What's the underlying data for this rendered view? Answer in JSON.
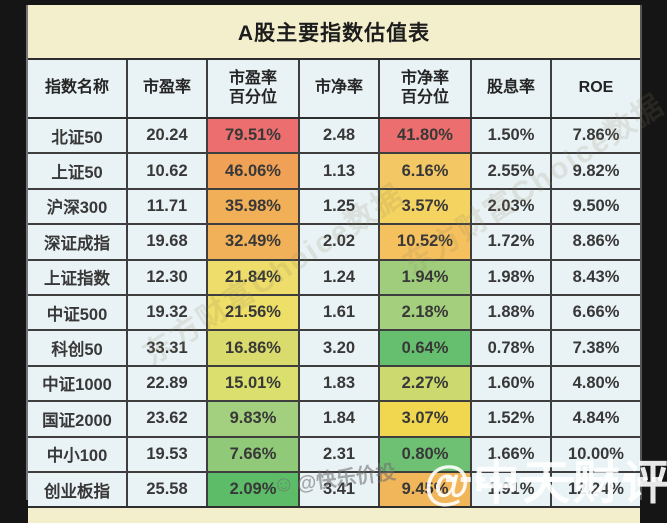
{
  "table": {
    "title": "A股主要指数估值表",
    "headers": [
      {
        "label": "指数名称"
      },
      {
        "label": "市盈率"
      },
      {
        "label": "市盈率",
        "label2": "百分位"
      },
      {
        "label": "市净率"
      },
      {
        "label": "市净率",
        "label2": "百分位"
      },
      {
        "label": "股息率"
      },
      {
        "label": "ROE"
      }
    ],
    "rows": [
      {
        "name": "北证50",
        "pe": "20.24",
        "pe_pct": "79.51%",
        "pe_pct_color": "#ed6e6e",
        "pb": "2.48",
        "pb_pct": "41.80%",
        "pb_pct_color": "#ed6e6e",
        "div_yield": "1.50%",
        "roe": "7.86%"
      },
      {
        "name": "上证50",
        "pe": "10.62",
        "pe_pct": "46.06%",
        "pe_pct_color": "#f0a156",
        "pb": "1.13",
        "pb_pct": "6.16%",
        "pb_pct_color": "#f3c763",
        "div_yield": "2.55%",
        "roe": "9.82%"
      },
      {
        "name": "沪深300",
        "pe": "11.71",
        "pe_pct": "35.98%",
        "pe_pct_color": "#f1af58",
        "pb": "1.25",
        "pb_pct": "3.57%",
        "pb_pct_color": "#f4d360",
        "div_yield": "2.03%",
        "roe": "9.50%"
      },
      {
        "name": "深证成指",
        "pe": "19.68",
        "pe_pct": "32.49%",
        "pe_pct_color": "#f1b159",
        "pb": "2.02",
        "pb_pct": "10.52%",
        "pb_pct_color": "#f5c05e",
        "div_yield": "1.72%",
        "roe": "8.86%"
      },
      {
        "name": "上证指数",
        "pe": "12.30",
        "pe_pct": "21.84%",
        "pe_pct_color": "#eedd6a",
        "pb": "1.24",
        "pb_pct": "1.94%",
        "pb_pct_color": "#a0cd7b",
        "div_yield": "1.98%",
        "roe": "8.43%"
      },
      {
        "name": "中证500",
        "pe": "19.32",
        "pe_pct": "21.56%",
        "pe_pct_color": "#eedf69",
        "pb": "1.61",
        "pb_pct": "2.18%",
        "pb_pct_color": "#a4cf7d",
        "div_yield": "1.88%",
        "roe": "6.66%"
      },
      {
        "name": "科创50",
        "pe": "33.31",
        "pe_pct": "16.86%",
        "pe_pct_color": "#d9dc6c",
        "pb": "3.20",
        "pb_pct": "0.64%",
        "pb_pct_color": "#65bf6e",
        "div_yield": "0.78%",
        "roe": "7.38%"
      },
      {
        "name": "中证1000",
        "pe": "22.89",
        "pe_pct": "15.01%",
        "pe_pct_color": "#dadf6e",
        "pb": "1.83",
        "pb_pct": "2.27%",
        "pb_pct_color": "#cbd96e",
        "div_yield": "1.60%",
        "roe": "4.80%"
      },
      {
        "name": "国证2000",
        "pe": "23.62",
        "pe_pct": "9.83%",
        "pe_pct_color": "#a3d07e",
        "pb": "1.84",
        "pb_pct": "3.07%",
        "pb_pct_color": "#f1d64f",
        "div_yield": "1.52%",
        "roe": "4.84%"
      },
      {
        "name": "中小100",
        "pe": "19.53",
        "pe_pct": "7.66%",
        "pe_pct_color": "#90ca79",
        "pb": "2.31",
        "pb_pct": "0.80%",
        "pb_pct_color": "#6ec173",
        "div_yield": "1.66%",
        "roe": "10.00%"
      },
      {
        "name": "创业板指",
        "pe": "25.58",
        "pe_pct": "2.09%",
        "pe_pct_color": "#5cbc68",
        "pb": "3.41",
        "pb_pct": "9.45%",
        "pb_pct_color": "#f2b65a",
        "div_yield": "1.91%",
        "roe": "12.24%"
      }
    ]
  },
  "watermarks": {
    "diagonal_text": "东方财富Choice数据",
    "stamp_icon": "smiley-icon",
    "stamp_text": "@快乐价投",
    "big_text": "@中天财评候"
  },
  "colors": {
    "title_bg": "#f3efcd",
    "cell_bg": "#e9f2f5",
    "grid_line": "#3e3e3e",
    "frame_bg": "#151515",
    "red": "#ed6e6e",
    "orange": "#f1af58",
    "yellow": "#f4d360",
    "green": "#a0cd7b",
    "dark_green": "#5cbc68"
  },
  "chart_data": {
    "type": "table",
    "title": "A股主要指数估值表",
    "columns": [
      "指数名称",
      "市盈率",
      "市盈率百分位",
      "市净率",
      "市净率百分位",
      "股息率",
      "ROE"
    ],
    "rows": [
      [
        "北证50",
        20.24,
        "79.51%",
        2.48,
        "41.80%",
        "1.50%",
        "7.86%"
      ],
      [
        "上证50",
        10.62,
        "46.06%",
        1.13,
        "6.16%",
        "2.55%",
        "9.82%"
      ],
      [
        "沪深300",
        11.71,
        "35.98%",
        1.25,
        "3.57%",
        "2.03%",
        "9.50%"
      ],
      [
        "深证成指",
        19.68,
        "32.49%",
        2.02,
        "10.52%",
        "1.72%",
        "8.86%"
      ],
      [
        "上证指数",
        12.3,
        "21.84%",
        1.24,
        "1.94%",
        "1.98%",
        "8.43%"
      ],
      [
        "中证500",
        19.32,
        "21.56%",
        1.61,
        "2.18%",
        "1.88%",
        "6.66%"
      ],
      [
        "科创50",
        33.31,
        "16.86%",
        3.2,
        "0.64%",
        "0.78%",
        "7.38%"
      ],
      [
        "中证1000",
        22.89,
        "15.01%",
        1.83,
        "2.27%",
        "1.60%",
        "4.80%"
      ],
      [
        "国证2000",
        23.62,
        "9.83%",
        1.84,
        "3.07%",
        "1.52%",
        "4.84%"
      ],
      [
        "中小100",
        19.53,
        "7.66%",
        2.31,
        "0.80%",
        "1.66%",
        "10.00%"
      ],
      [
        "创业板指",
        25.58,
        "2.09%",
        3.41,
        "9.45%",
        "1.91%",
        "12.24%"
      ]
    ],
    "notes": "percentile cells are heat-colored red(high)→green(low)"
  }
}
